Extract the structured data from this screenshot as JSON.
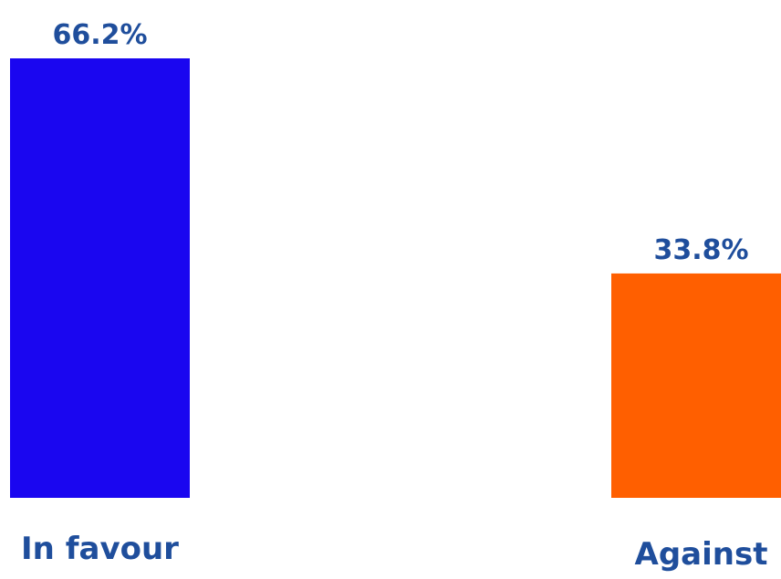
{
  "chart_data": {
    "type": "bar",
    "categories": [
      "In favour",
      "Against"
    ],
    "values": [
      66.2,
      33.8
    ],
    "value_labels": [
      "66.2%",
      "33.8%"
    ],
    "colors": [
      "#1A06F0",
      "#FF5F00"
    ],
    "label_color": "#1F4E9C",
    "ylim": [
      0,
      66.2
    ],
    "grid": false,
    "legend": "none"
  }
}
